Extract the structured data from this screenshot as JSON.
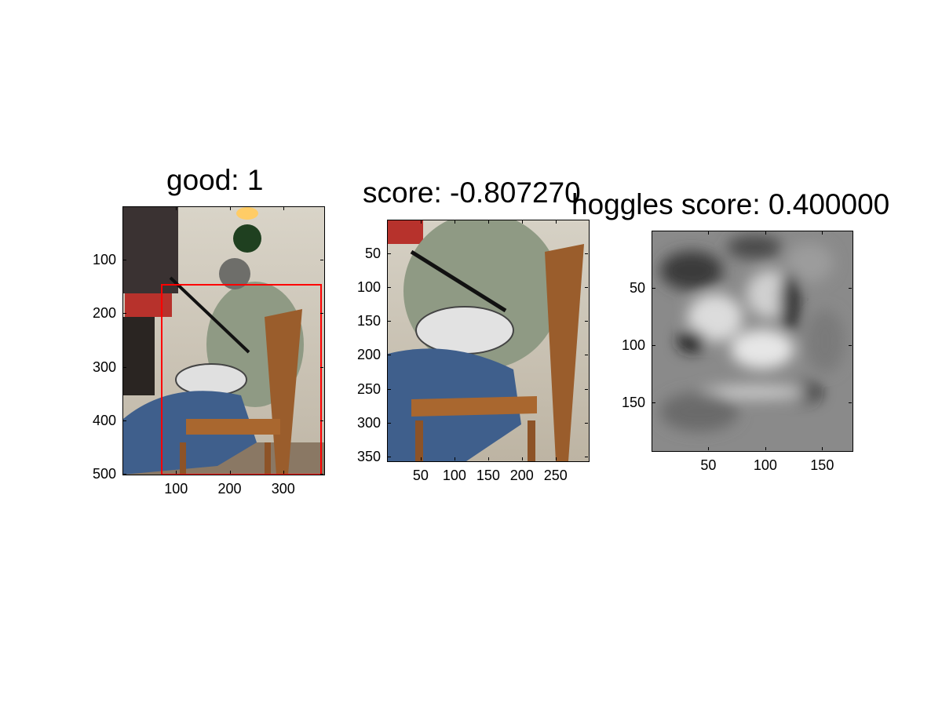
{
  "chart_data": [
    {
      "type": "image",
      "title": "good: 1",
      "content": "photo of a seated man in a wooden chair holding a bag; red bounding box overlay",
      "xlim": [
        0,
        375
      ],
      "ylim": [
        0,
        500
      ],
      "xticks": [
        100,
        200,
        300
      ],
      "yticks": [
        100,
        200,
        300,
        400,
        500
      ],
      "bbox_overlay": {
        "x1": 72,
        "y1": 145,
        "x2": 370,
        "y2": 500,
        "color": "#ff0000"
      }
    },
    {
      "type": "image",
      "title": "score: -0.807270",
      "content": "cropped photo of the seated man",
      "xlim": [
        0,
        298
      ],
      "ylim": [
        0,
        356
      ],
      "xticks": [
        50,
        100,
        150,
        200,
        250
      ],
      "yticks": [
        50,
        100,
        150,
        200,
        250,
        300,
        350
      ]
    },
    {
      "type": "heatmap",
      "title": "hoggles score: 0.400000",
      "content": "grayscale HOG inverse visualization",
      "colormap": "gray",
      "xlim": [
        0,
        176
      ],
      "ylim": [
        0,
        192
      ],
      "xticks": [
        50,
        100,
        150
      ],
      "yticks": [
        50,
        100,
        150
      ]
    }
  ]
}
